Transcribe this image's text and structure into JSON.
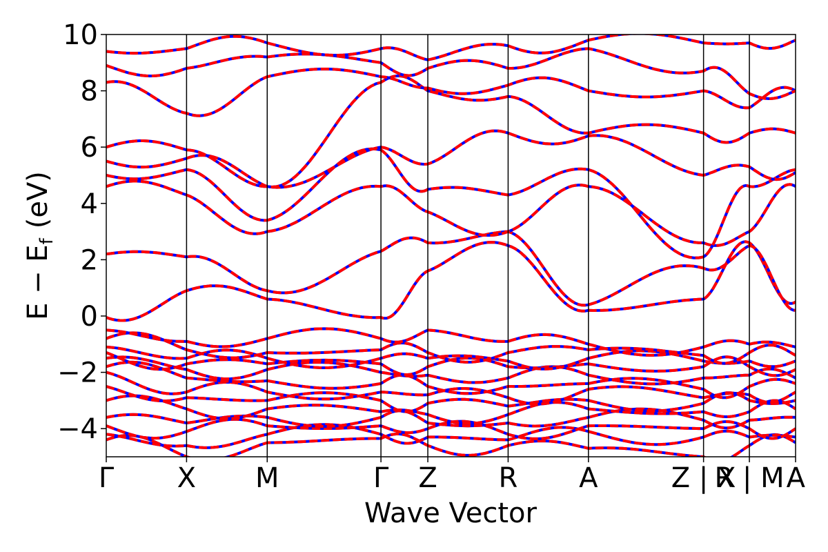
{
  "chart_data": {
    "type": "line",
    "xlabel": "Wave Vector",
    "ylabel_main": "E − E",
    "ylabel_sub": "f",
    "ylabel_unit": "(eV)",
    "ylim": [
      -5,
      10
    ],
    "yticks": [
      -4,
      -2,
      0,
      2,
      4,
      6,
      8,
      10
    ],
    "ytick_labels": [
      "−4",
      "−2",
      "0",
      "2",
      "4",
      "6",
      "8",
      "10"
    ],
    "kpath": [
      {
        "label": "Γ",
        "x": 0.0
      },
      {
        "label": "X",
        "x": 0.1165
      },
      {
        "label": "M",
        "x": 0.2335
      },
      {
        "label": "Γ",
        "x": 0.3985
      },
      {
        "label": "Z",
        "x": 0.4665
      },
      {
        "label": "R",
        "x": 0.583
      },
      {
        "label": "A",
        "x": 0.6995
      },
      {
        "label": "Z | X",
        "x": 0.8665
      },
      {
        "label": "R | M",
        "x": 0.933
      },
      {
        "label": "A",
        "x": 1.0
      }
    ],
    "xlim": [
      0,
      1
    ],
    "series_colors": {
      "blue": "#0000ff",
      "red": "#ff0000"
    },
    "bands_approx_energies_at_kpoints": [
      [
        -4.4,
        -5.0,
        -4.5,
        -4.35,
        -4.6,
        -4.6,
        -4.7,
        -5.0,
        -4.6,
        -4.5
      ],
      [
        -4.2,
        -4.6,
        -4.2,
        -4.2,
        -4.3,
        -4.4,
        -4.1,
        -4.3,
        -4.3,
        -4.3
      ],
      [
        -3.9,
        -4.1,
        -3.9,
        -3.9,
        -4.0,
        -4.2,
        -3.9,
        -4.0,
        -4.0,
        -4.0
      ],
      [
        -3.6,
        -3.8,
        -3.6,
        -3.6,
        -3.8,
        -3.8,
        -3.6,
        -3.7,
        -3.7,
        -3.6
      ],
      [
        -3.0,
        -3.3,
        -3.3,
        -3.4,
        -3.5,
        -3.5,
        -3.3,
        -3.4,
        -3.4,
        -3.3
      ],
      [
        -2.5,
        -2.9,
        -3.0,
        -3.0,
        -3.1,
        -3.2,
        -3.0,
        -3.1,
        -3.0,
        -3.0
      ],
      [
        -2.0,
        -2.7,
        -2.7,
        -2.7,
        -2.8,
        -2.9,
        -2.6,
        -2.9,
        -2.8,
        -2.7
      ],
      [
        -1.8,
        -2.2,
        -2.3,
        -2.4,
        -2.5,
        -2.5,
        -2.4,
        -2.6,
        -2.5,
        -2.4
      ],
      [
        -1.5,
        -1.9,
        -1.9,
        -2.0,
        -2.1,
        -2.2,
        -2.1,
        -2.2,
        -2.1,
        -2.2
      ],
      [
        -1.3,
        -1.7,
        -1.7,
        -1.7,
        -1.8,
        -1.8,
        -1.7,
        -1.8,
        -1.8,
        -1.9
      ],
      [
        -1.1,
        -1.5,
        -1.5,
        -1.5,
        -1.5,
        -1.6,
        -1.5,
        -1.6,
        -1.6,
        -1.6
      ],
      [
        -0.8,
        -1.2,
        -1.3,
        -1.2,
        -1.3,
        -1.3,
        -1.2,
        -1.4,
        -1.3,
        -1.4
      ],
      [
        -0.5,
        -0.9,
        -0.8,
        -0.8,
        -0.5,
        -0.9,
        -1.0,
        -1.1,
        -1.0,
        -1.1
      ],
      [
        -0.05,
        0.9,
        0.6,
        -0.05,
        1.6,
        2.5,
        0.2,
        0.6,
        2.6,
        0.5
      ],
      [
        2.2,
        2.1,
        0.9,
        2.3,
        2.6,
        3.0,
        0.4,
        1.7,
        2.5,
        0.2
      ],
      [
        4.6,
        4.3,
        3.0,
        4.6,
        3.7,
        3.0,
        4.6,
        2.6,
        3.0,
        4.6
      ],
      [
        5.0,
        5.2,
        3.4,
        5.9,
        4.5,
        4.3,
        5.2,
        2.1,
        4.6,
        5.2
      ],
      [
        5.5,
        5.6,
        4.6,
        6.0,
        5.4,
        6.5,
        6.4,
        5.0,
        5.3,
        5.1
      ],
      [
        6.0,
        5.9,
        4.6,
        8.3,
        8.0,
        7.8,
        6.5,
        6.5,
        6.5,
        6.5
      ],
      [
        8.3,
        7.2,
        8.5,
        8.5,
        8.1,
        8.2,
        8.0,
        8.0,
        7.4,
        8.0
      ],
      [
        8.9,
        8.8,
        9.2,
        9.0,
        8.8,
        8.8,
        9.5,
        8.7,
        7.9,
        8.0
      ],
      [
        9.4,
        9.5,
        9.7,
        9.5,
        9.1,
        9.6,
        9.8,
        9.7,
        9.7,
        9.8
      ]
    ]
  }
}
